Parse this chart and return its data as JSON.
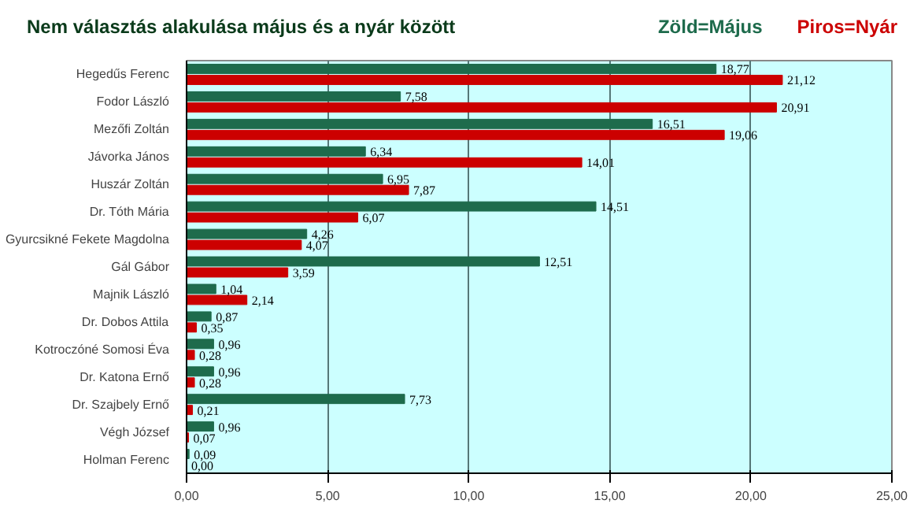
{
  "chart_data": {
    "type": "bar",
    "orientation": "horizontal",
    "title": "Nem választás alakulása május és a nyár között",
    "categories": [
      "Hegedűs Ferenc",
      "Fodor László",
      "Mezőfi Zoltán",
      "Jávorka János",
      "Huszár Zoltán",
      "Dr. Tóth Mária",
      "Gyurcsikné Fekete Magdolna",
      "Gál Gábor",
      "Majnik László",
      "Dr. Dobos Attila",
      "Kotroczóné Somosi Éva",
      "Dr. Katona Ernő",
      "Dr. Szajbely Ernő",
      "Végh József",
      "Holman Ferenc"
    ],
    "series": [
      {
        "name": "Zöld=Május",
        "color": "#1e6b4c",
        "values": [
          18.77,
          7.58,
          16.51,
          6.34,
          6.95,
          14.51,
          4.26,
          12.51,
          1.04,
          0.87,
          0.96,
          0.96,
          7.73,
          0.96,
          0.09
        ],
        "value_labels": [
          "18,77",
          "7,58",
          "16,51",
          "6,34",
          "6,95",
          "14,51",
          "4,26",
          "12,51",
          "1,04",
          "0,87",
          "0,96",
          "0,96",
          "7,73",
          "0,96",
          "0,09"
        ]
      },
      {
        "name": "Piros=Nyár",
        "color": "#cc0000",
        "values": [
          21.12,
          20.91,
          19.06,
          14.01,
          7.87,
          6.07,
          4.07,
          3.59,
          2.14,
          0.35,
          0.28,
          0.28,
          0.21,
          0.07,
          0.0
        ],
        "value_labels": [
          "21,12",
          "20,91",
          "19,06",
          "14,01",
          "7,87",
          "6,07",
          "4,07",
          "3,59",
          "2,14",
          "0,35",
          "0,28",
          "0,28",
          "0,21",
          "0,07",
          "0,00"
        ]
      }
    ],
    "xlim": [
      0,
      25
    ],
    "xticks": [
      {
        "value": 0,
        "label": "0,00"
      },
      {
        "value": 5,
        "label": "5,00"
      },
      {
        "value": 10,
        "label": "10,00"
      },
      {
        "value": 15,
        "label": "15,00"
      },
      {
        "value": 20,
        "label": "20,00"
      },
      {
        "value": 25,
        "label": "25,00"
      }
    ],
    "grid": "x"
  }
}
